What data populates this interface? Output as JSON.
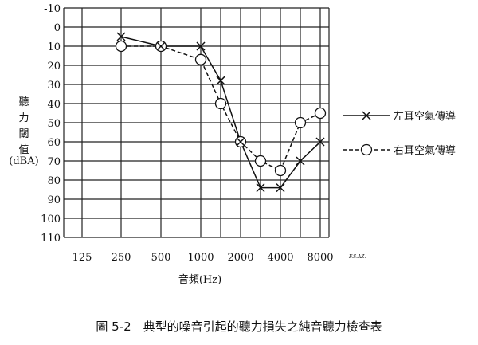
{
  "chart_data": {
    "type": "line",
    "title": "",
    "xlabel": "音頻(Hz)",
    "ylabel_lines": [
      "聽",
      "力",
      "閾",
      "值",
      "(dBA)"
    ],
    "x_categories": [
      "125",
      "250",
      "500",
      "1000",
      "1500",
      "2000",
      "3000",
      "4000",
      "6000",
      "8000"
    ],
    "x_tick_labels": [
      "125",
      "250",
      "500",
      "1000",
      "",
      "2000",
      "",
      "4000",
      "",
      "8000"
    ],
    "y_ticks": [
      -10,
      0,
      10,
      20,
      30,
      40,
      50,
      60,
      70,
      80,
      90,
      100,
      110
    ],
    "ylim": [
      -10,
      110
    ],
    "y_inverted": true,
    "grid": true,
    "legend_position": "right",
    "series": [
      {
        "name": "左耳空氣傳導",
        "marker": "x",
        "line_style": "solid",
        "x": [
          "250",
          "500",
          "1000",
          "1500",
          "2000",
          "3000",
          "4000",
          "6000",
          "8000"
        ],
        "values": [
          5,
          10,
          10,
          28,
          60,
          84,
          84,
          70,
          60
        ]
      },
      {
        "name": "右耳空氣傳導",
        "marker": "circle",
        "line_style": "dashed",
        "x": [
          "250",
          "500",
          "1000",
          "1500",
          "2000",
          "3000",
          "4000",
          "6000",
          "8000"
        ],
        "values": [
          10,
          10,
          17,
          40,
          60,
          70,
          75,
          50,
          45
        ]
      }
    ],
    "corner_mark": "F.S.AZ.",
    "caption": "圖 5-2　典型的噪音引起的聽力損失之純音聽力檢查表"
  }
}
